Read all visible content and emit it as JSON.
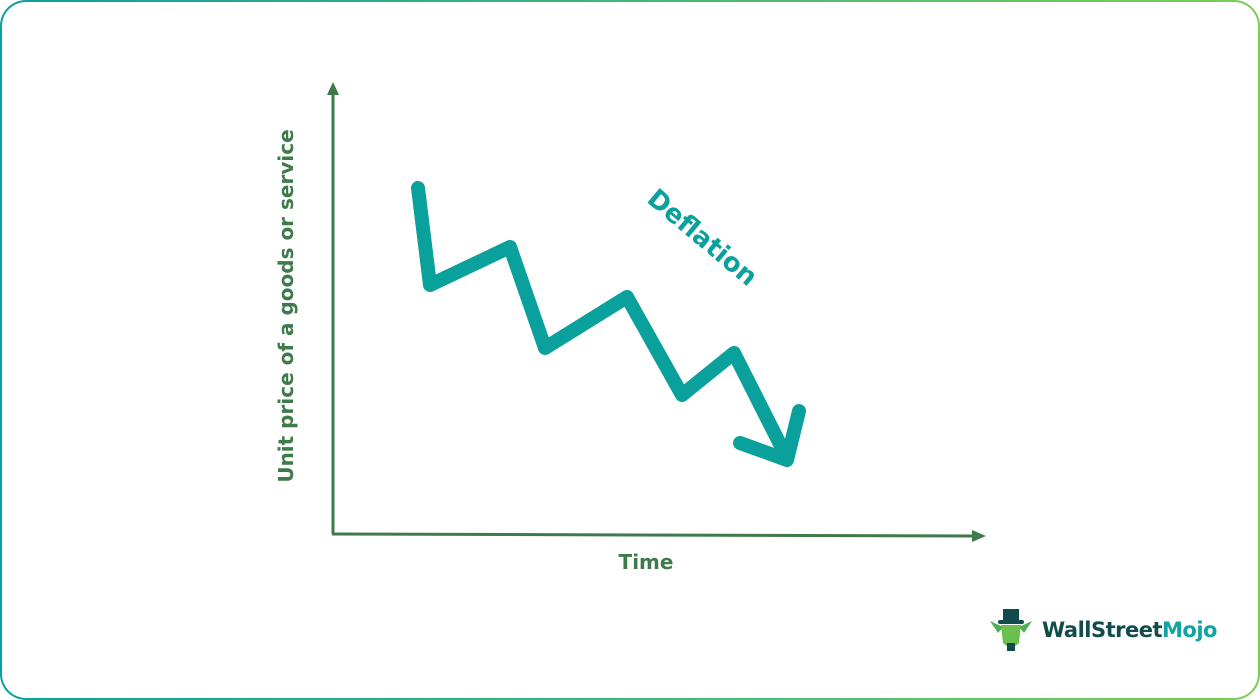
{
  "diagram": {
    "y_axis_label": "Unit price of a goods or service",
    "x_axis_label": "Time",
    "annotation": "Deflation",
    "colors": {
      "axis": "#3f7a4a",
      "trend": "#0aa09c",
      "frame_start": "#0aa0a0",
      "frame_end": "#7dcc55"
    }
  },
  "logo": {
    "part1": "WallStreet",
    "part2": "Mojo",
    "icon": "bull-mascot-icon"
  }
}
